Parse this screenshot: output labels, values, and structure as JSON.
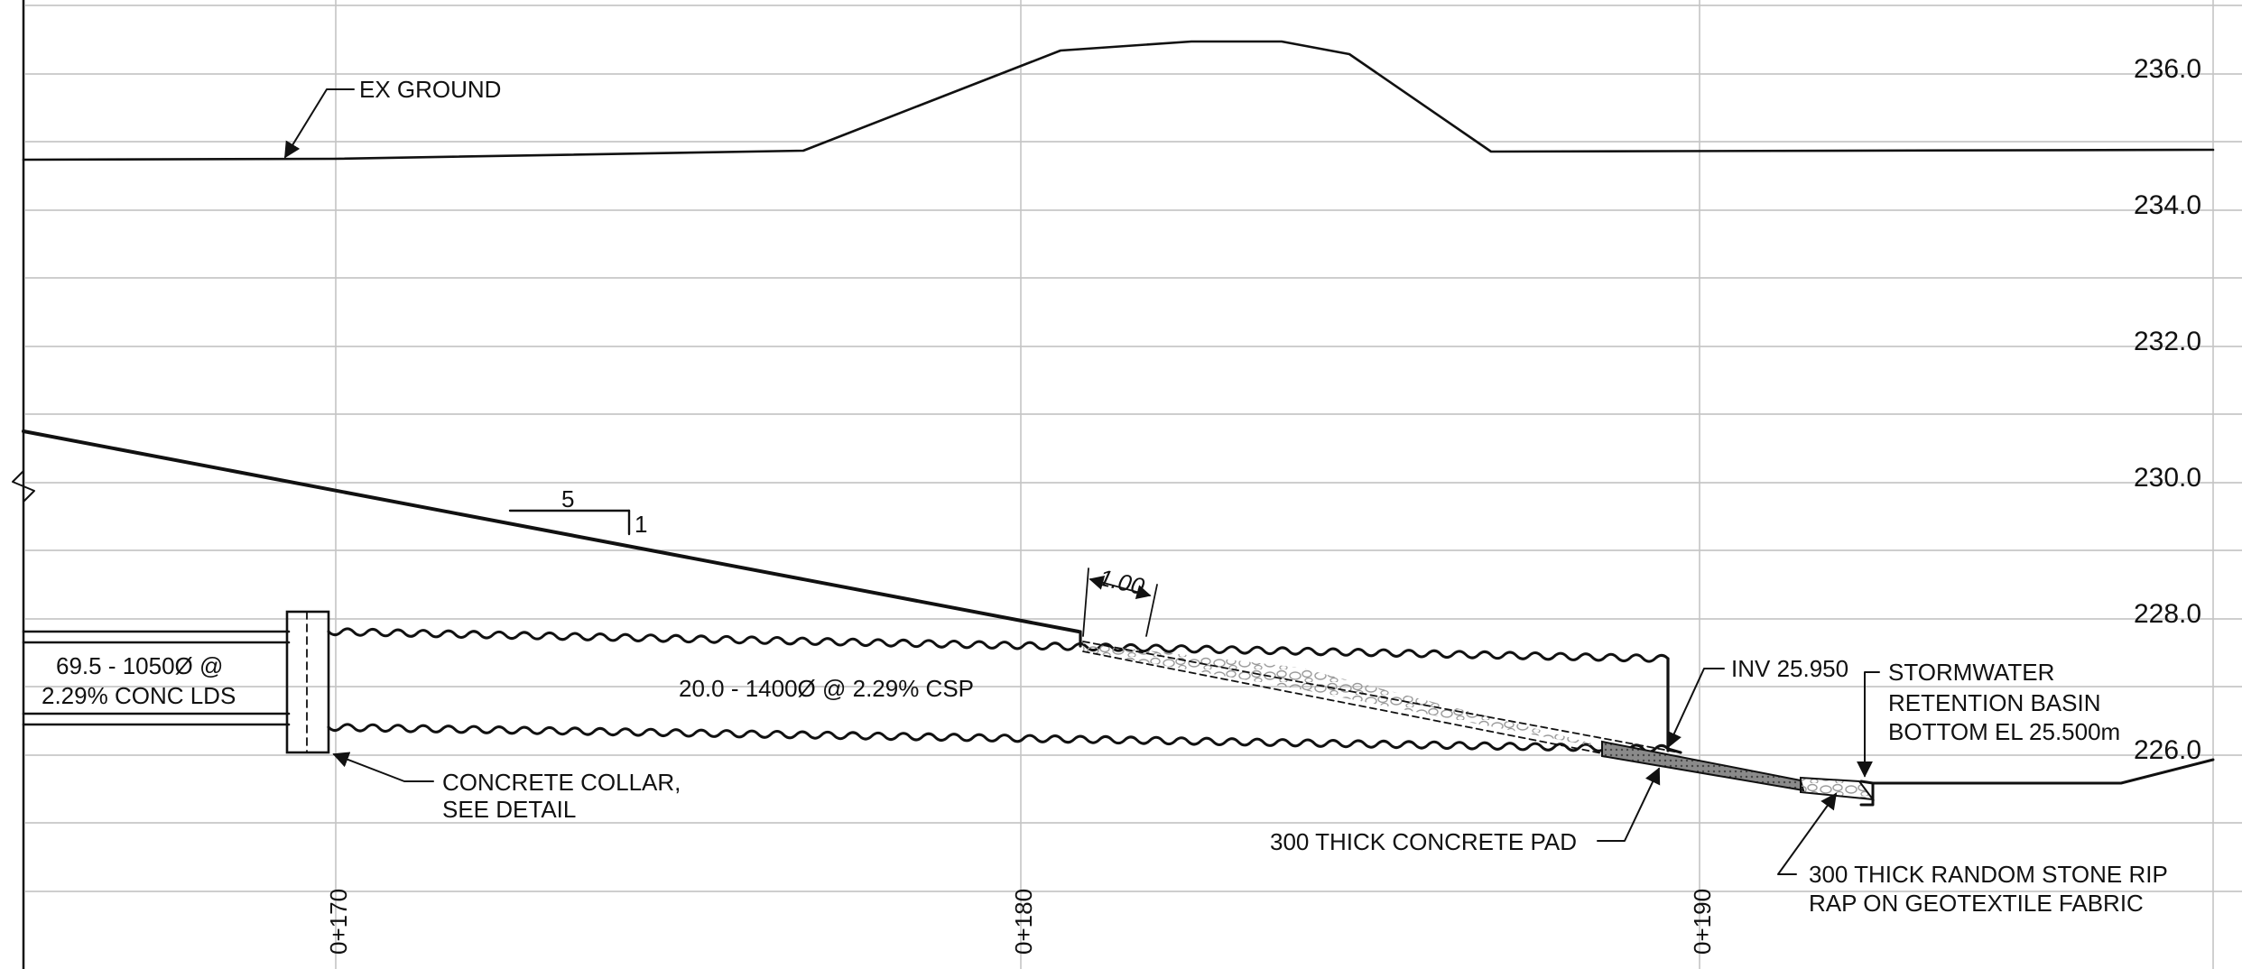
{
  "colors": {
    "ink": "#111111",
    "grid": "#bdbdbd",
    "concrete_pad_fill": "#8a8a8a",
    "stone": "#9a9a9a"
  },
  "elevations": [
    "236.0",
    "234.0",
    "232.0",
    "230.0",
    "228.0",
    "226.0"
  ],
  "stations": [
    "0+170",
    "0+180",
    "0+190"
  ],
  "labels": {
    "ex_ground": "EX GROUND",
    "slope_run": "5",
    "slope_rise": "1",
    "dimension": "1.00",
    "lds_pipe_line1": "69.5 - 1050Ø @",
    "lds_pipe_line2": "2.29% CONC LDS",
    "csp_pipe": "20.0 - 1400Ø @ 2.29% CSP",
    "collar_line1": "CONCRETE COLLAR,",
    "collar_line2": "SEE DETAIL",
    "invert": "INV 25.950",
    "basin_line1": "STORMWATER",
    "basin_line2": "RETENTION BASIN",
    "basin_line3": "BOTTOM EL 25.500m",
    "pad": "300 THICK CONCRETE PAD",
    "riprap_line1": "300 THICK RANDOM STONE RIP",
    "riprap_line2": "RAP ON GEOTEXTILE FABRIC"
  },
  "icons": [
    "break-line-icon",
    "leader-arrow-icon"
  ]
}
